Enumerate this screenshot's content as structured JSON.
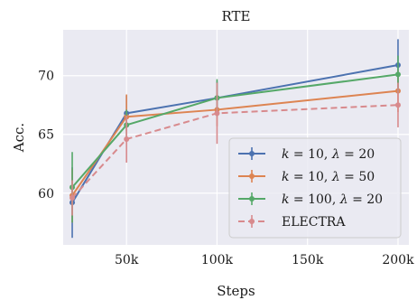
{
  "chart_data": {
    "type": "line",
    "title": "RTE",
    "xlabel": "Steps",
    "ylabel": "Acc.",
    "x": [
      20000,
      50000,
      100000,
      200000
    ],
    "xticks": [
      50000,
      100000,
      150000,
      200000
    ],
    "xtick_labels": [
      "50k",
      "100k",
      "150k",
      "200k"
    ],
    "yticks": [
      60,
      65,
      70
    ],
    "xlim": [
      15000,
      206000
    ],
    "ylim": [
      55.6,
      73.9
    ],
    "grid": true,
    "legend_position": "lower-right",
    "series": [
      {
        "name": "k = 10, λ = 20",
        "legend": {
          "a": "k",
          "b": " = 10, ",
          "c": "λ",
          "d": " = 20"
        },
        "color": "#4c72b0",
        "style": "solid",
        "values": [
          59.2,
          66.8,
          68.1,
          70.9
        ],
        "errors": [
          3.0,
          1.5,
          1.4,
          2.2
        ]
      },
      {
        "name": "k = 10, λ = 50",
        "legend": {
          "a": "k",
          "b": " = 10, ",
          "c": "λ",
          "d": " = 50"
        },
        "color": "#dd8452",
        "style": "solid",
        "values": [
          59.8,
          66.5,
          67.1,
          68.7
        ],
        "errors": [
          2.3,
          1.9,
          1.4,
          1.8
        ]
      },
      {
        "name": "k = 100, λ = 20",
        "legend": {
          "a": "k",
          "b": " = 100, ",
          "c": "λ",
          "d": " = 20"
        },
        "color": "#55a868",
        "style": "solid",
        "values": [
          60.5,
          65.8,
          68.1,
          70.1
        ],
        "errors": [
          3.0,
          1.3,
          1.6,
          1.6
        ]
      },
      {
        "name": "ELECTRA",
        "legend": {
          "a": "",
          "b": "ELECTRA",
          "c": "",
          "d": ""
        },
        "color": "#d88a8d",
        "style": "dashed",
        "values": [
          59.6,
          64.6,
          66.8,
          67.5
        ],
        "errors": [
          1.5,
          2.0,
          2.6,
          1.9
        ]
      }
    ]
  }
}
